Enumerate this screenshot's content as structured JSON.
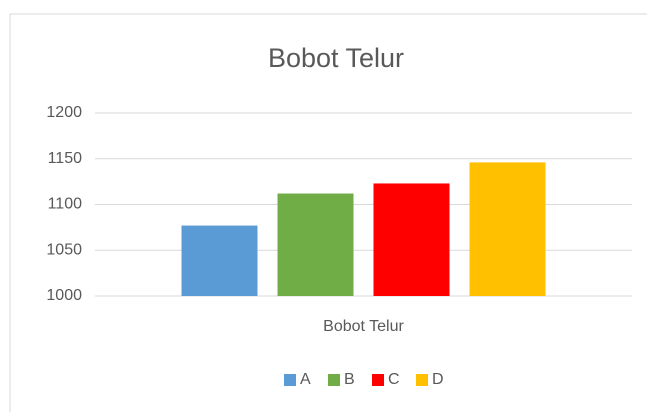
{
  "chart_data": {
    "type": "bar",
    "title": "Bobot Telur",
    "categories": [
      "Bobot Telur"
    ],
    "series": [
      {
        "name": "A",
        "color": "#5b9bd5",
        "values": [
          1077
        ]
      },
      {
        "name": "B",
        "color": "#70ad47",
        "values": [
          1112
        ]
      },
      {
        "name": "C",
        "color": "#ff0000",
        "values": [
          1123
        ]
      },
      {
        "name": "D",
        "color": "#ffc000",
        "values": [
          1146
        ]
      }
    ],
    "ylim": [
      1000,
      1200
    ],
    "yticks": [
      1000,
      1050,
      1100,
      1150,
      1200
    ],
    "grid": true,
    "legend": "bottom"
  }
}
